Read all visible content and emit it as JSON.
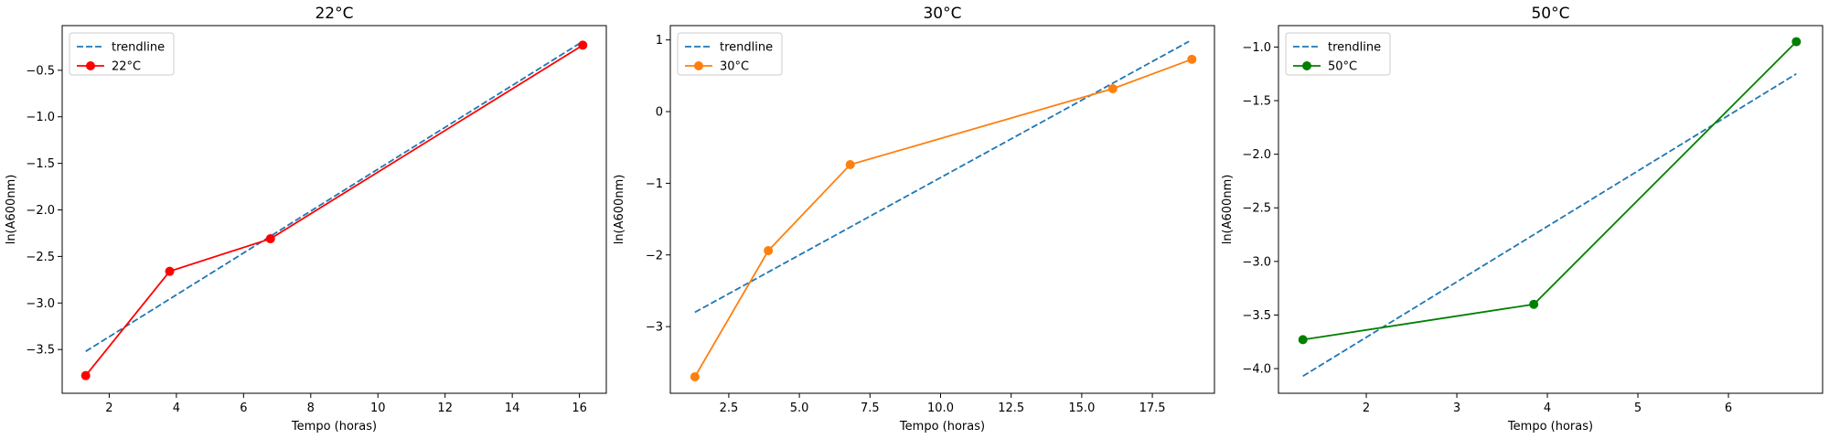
{
  "chart_data": [
    {
      "type": "line",
      "title": "22°C",
      "xlabel": "Tempo (horas)",
      "ylabel": "ln(A600nm)",
      "xlim": [
        0.6,
        16.8
      ],
      "ylim": [
        -3.97,
        -0.02
      ],
      "xticks": [
        2,
        4,
        6,
        8,
        10,
        12,
        14,
        16
      ],
      "yticks": [
        -3.5,
        -3.0,
        -2.5,
        -2.0,
        -1.5,
        -1.0,
        -0.5
      ],
      "xtick_labels": [
        "2",
        "4",
        "6",
        "8",
        "10",
        "12",
        "14",
        "16"
      ],
      "ytick_labels": [
        "−3.5",
        "−3.0",
        "−2.5",
        "−2.0",
        "−1.5",
        "−1.0",
        "−0.5"
      ],
      "grid": false,
      "legend": "top-left",
      "series": [
        {
          "name": "trendline",
          "style": "dashed",
          "color": "#1f77b4",
          "x": [
            1.3,
            16.1
          ],
          "y": [
            -3.52,
            -0.19
          ]
        },
        {
          "name": "22°C",
          "style": "solid-marker",
          "color": "#ff0000",
          "x": [
            1.3,
            3.8,
            6.8,
            16.1
          ],
          "y": [
            -3.78,
            -2.66,
            -2.31,
            -0.23
          ]
        }
      ]
    },
    {
      "type": "line",
      "title": "30°C",
      "xlabel": "Tempo (horas)",
      "ylabel": "ln(A600nm)",
      "xlim": [
        0.43,
        19.7
      ],
      "ylim": [
        -3.93,
        1.2
      ],
      "xticks": [
        2.5,
        5.0,
        7.5,
        10.0,
        12.5,
        15.0,
        17.5
      ],
      "yticks": [
        -3,
        -2,
        -1,
        0,
        1
      ],
      "xtick_labels": [
        "2.5",
        "5.0",
        "7.5",
        "10.0",
        "12.5",
        "15.0",
        "17.5"
      ],
      "ytick_labels": [
        "−3",
        "−2",
        "−1",
        "0",
        "1"
      ],
      "grid": false,
      "legend": "top-left",
      "series": [
        {
          "name": "trendline",
          "style": "dashed",
          "color": "#1f77b4",
          "x": [
            1.3,
            18.8
          ],
          "y": [
            -2.8,
            0.98
          ]
        },
        {
          "name": "30°C",
          "style": "solid-marker",
          "color": "#ff7f0e",
          "x": [
            1.3,
            3.9,
            6.8,
            16.1,
            18.9
          ],
          "y": [
            -3.7,
            -1.94,
            -0.74,
            0.32,
            0.73
          ]
        }
      ]
    },
    {
      "type": "line",
      "title": "50°C",
      "xlabel": "Tempo (horas)",
      "ylabel": "ln(A600nm)",
      "xlim": [
        1.03,
        7.04
      ],
      "ylim": [
        -4.23,
        -0.8
      ],
      "xticks": [
        2,
        3,
        4,
        5,
        6
      ],
      "yticks": [
        -4.0,
        -3.5,
        -3.0,
        -2.5,
        -2.0,
        -1.5,
        -1.0
      ],
      "xtick_labels": [
        "2",
        "3",
        "4",
        "5",
        "6"
      ],
      "ytick_labels": [
        "−4.0",
        "−3.5",
        "−3.0",
        "−2.5",
        "−2.0",
        "−1.5",
        "−1.0"
      ],
      "grid": false,
      "legend": "top-left",
      "series": [
        {
          "name": "trendline",
          "style": "dashed",
          "color": "#1f77b4",
          "x": [
            1.3,
            6.75
          ],
          "y": [
            -4.07,
            -1.25
          ]
        },
        {
          "name": "50°C",
          "style": "solid-marker",
          "color": "#008000",
          "x": [
            1.3,
            3.85,
            6.75
          ],
          "y": [
            -3.73,
            -3.4,
            -0.95
          ]
        }
      ]
    }
  ]
}
